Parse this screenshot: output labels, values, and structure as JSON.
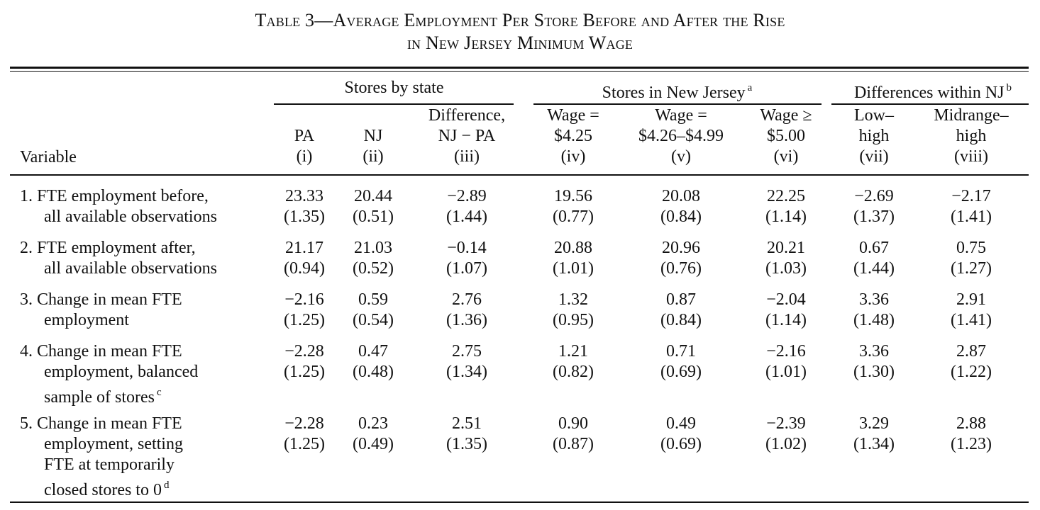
{
  "caption": {
    "line1": "Table 3—Average Employment Per Store Before and After the Rise",
    "line2": "in New Jersey Minimum Wage"
  },
  "groups": {
    "stores_by_state": "Stores by state",
    "stores_in_nj": "Stores in New Jersey",
    "stores_in_nj_note": "a",
    "diff_within_nj": "Differences within NJ",
    "diff_within_nj_note": "b"
  },
  "variable_label": "Variable",
  "columns": [
    {
      "lines": [
        "PA",
        "(i)"
      ]
    },
    {
      "lines": [
        "NJ",
        "(ii)"
      ]
    },
    {
      "lines": [
        "Difference,",
        "NJ − PA",
        "(iii)"
      ]
    },
    {
      "lines": [
        "Wage =",
        "$4.25",
        "(iv)"
      ]
    },
    {
      "lines": [
        "Wage =",
        "$4.26–$4.99",
        "(v)"
      ]
    },
    {
      "lines": [
        "Wage ≥",
        "$5.00",
        "(vi)"
      ]
    },
    {
      "lines": [
        "Low–",
        "high",
        "(vii)"
      ]
    },
    {
      "lines": [
        "Midrange–",
        "high",
        "(viii)"
      ]
    }
  ],
  "rows": [
    {
      "label": [
        "1. FTE employment before,",
        "all available observations"
      ],
      "values": [
        "23.33",
        "20.44",
        "−2.89",
        "19.56",
        "20.08",
        "22.25",
        "−2.69",
        "−2.17"
      ],
      "se": [
        "(1.35)",
        "(0.51)",
        "(1.44)",
        "(0.77)",
        "(0.84)",
        "(1.14)",
        "(1.37)",
        "(1.41)"
      ]
    },
    {
      "label": [
        "2. FTE employment after,",
        "all available observations"
      ],
      "values": [
        "21.17",
        "21.03",
        "−0.14",
        "20.88",
        "20.96",
        "20.21",
        "0.67",
        "0.75"
      ],
      "se": [
        "(0.94)",
        "(0.52)",
        "(1.07)",
        "(1.01)",
        "(0.76)",
        "(1.03)",
        "(1.44)",
        "(1.27)"
      ]
    },
    {
      "label": [
        "3. Change in mean FTE",
        "employment"
      ],
      "values": [
        "−2.16",
        "0.59",
        "2.76",
        "1.32",
        "0.87",
        "−2.04",
        "3.36",
        "2.91"
      ],
      "se": [
        "(1.25)",
        "(0.54)",
        "(1.36)",
        "(0.95)",
        "(0.84)",
        "(1.14)",
        "(1.48)",
        "(1.41)"
      ]
    },
    {
      "label": [
        "4. Change in mean FTE",
        "employment, balanced",
        "sample of stores"
      ],
      "label_note": "c",
      "values": [
        "−2.28",
        "0.47",
        "2.75",
        "1.21",
        "0.71",
        "−2.16",
        "3.36",
        "2.87"
      ],
      "se": [
        "(1.25)",
        "(0.48)",
        "(1.34)",
        "(0.82)",
        "(0.69)",
        "(1.01)",
        "(1.30)",
        "(1.22)"
      ]
    },
    {
      "label": [
        "5. Change in mean FTE",
        "employment, setting",
        "FTE at temporarily",
        "closed stores to 0"
      ],
      "label_note": "d",
      "values": [
        "−2.28",
        "0.23",
        "2.51",
        "0.90",
        "0.49",
        "−2.39",
        "3.29",
        "2.88"
      ],
      "se": [
        "(1.25)",
        "(0.49)",
        "(1.35)",
        "(0.87)",
        "(0.69)",
        "(1.02)",
        "(1.34)",
        "(1.23)"
      ]
    }
  ]
}
